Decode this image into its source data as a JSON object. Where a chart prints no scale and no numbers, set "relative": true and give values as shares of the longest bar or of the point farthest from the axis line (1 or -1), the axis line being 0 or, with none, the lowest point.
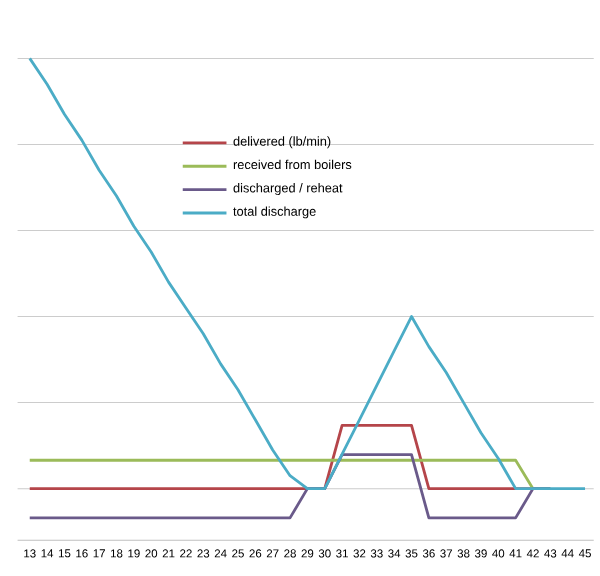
{
  "chart_data": {
    "type": "line",
    "relative": true,
    "grid": "y",
    "legend": "top",
    "marker": "none",
    "line_style": "solid",
    "categories": [
      "13",
      "14",
      "15",
      "16",
      "17",
      "18",
      "19",
      "20",
      "21",
      "22",
      "23",
      "24",
      "25",
      "26",
      "27",
      "28",
      "29",
      "30",
      "31",
      "32",
      "33",
      "34",
      "35",
      "36",
      "37",
      "38",
      "39",
      "40",
      "41",
      "42",
      "43",
      "44",
      "45"
    ],
    "series": [
      {
        "name": "delivered (lb/min)",
        "color": "#b5454a",
        "values": [
          0,
          0,
          0,
          0,
          0,
          0,
          0,
          0,
          0,
          0,
          0,
          0,
          0,
          0,
          0,
          0,
          0,
          0,
          0.147,
          0.147,
          0.147,
          0.147,
          0.147,
          0,
          0,
          0,
          0,
          0,
          0,
          0,
          null,
          null,
          null
        ]
      },
      {
        "name": "received from boilers",
        "color": "#9bbb59",
        "values": [
          0.066,
          0.066,
          0.066,
          0.066,
          0.066,
          0.066,
          0.066,
          0.066,
          0.066,
          0.066,
          0.066,
          0.066,
          0.066,
          0.066,
          0.066,
          0.066,
          0.066,
          0.066,
          0.066,
          0.066,
          0.066,
          0.066,
          0.066,
          0.066,
          0.066,
          0.066,
          0.066,
          0.066,
          0.066,
          0,
          0,
          null,
          null
        ]
      },
      {
        "name": "discharged / reheat",
        "color": "#6a5a8a",
        "values": [
          -0.068,
          -0.068,
          -0.068,
          -0.068,
          -0.068,
          -0.068,
          -0.068,
          -0.068,
          -0.068,
          -0.068,
          -0.068,
          -0.068,
          -0.068,
          -0.068,
          -0.068,
          -0.068,
          0,
          0,
          0.079,
          0.079,
          0.079,
          0.079,
          0.079,
          -0.068,
          -0.068,
          -0.068,
          -0.068,
          -0.068,
          -0.068,
          0,
          0,
          null,
          null
        ]
      },
      {
        "name": "total discharge",
        "color": "#4bacc6",
        "values": [
          1,
          0.94,
          0.87,
          0.81,
          0.74,
          0.68,
          0.61,
          0.55,
          0.48,
          0.42,
          0.36,
          0.29,
          0.23,
          0.16,
          0.09,
          0.03,
          0,
          0,
          0.08,
          0.16,
          0.24,
          0.32,
          0.4,
          0.33,
          0.27,
          0.2,
          0.13,
          0.07,
          0,
          0,
          0,
          0,
          0
        ]
      }
    ]
  }
}
